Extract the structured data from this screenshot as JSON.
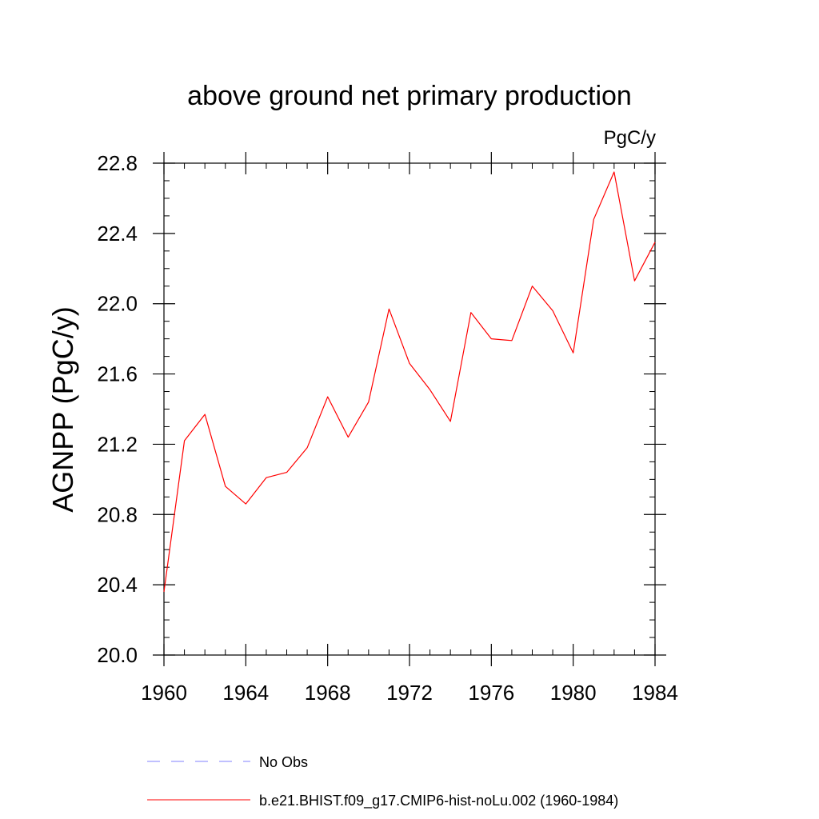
{
  "chart_data": {
    "type": "line",
    "title": "above ground net primary production",
    "units_label": "PgC/y",
    "xlabel": "",
    "ylabel": "AGNPP  (PgC/y)",
    "xlim": [
      1960,
      1984
    ],
    "ylim": [
      20.0,
      22.8
    ],
    "x_ticks": [
      1960,
      1964,
      1968,
      1972,
      1976,
      1980,
      1984
    ],
    "x_tick_labels": [
      "1960",
      "1964",
      "1968",
      "1972",
      "1976",
      "1980",
      "1984"
    ],
    "y_ticks": [
      20.0,
      20.4,
      20.8,
      21.2,
      21.6,
      22.0,
      22.4,
      22.8
    ],
    "y_tick_labels": [
      "20.0",
      "20.4",
      "20.8",
      "21.2",
      "21.6",
      "22.0",
      "22.4",
      "22.8"
    ],
    "grid": false,
    "legend_position": "bottom",
    "series": [
      {
        "name": "b.e21.BHIST.f09_g17.CMIP6-hist-noLu.002 (1960-1984)",
        "color": "#ff0000",
        "style": "solid",
        "x": [
          1960,
          1961,
          1962,
          1963,
          1964,
          1965,
          1966,
          1967,
          1968,
          1969,
          1970,
          1971,
          1972,
          1973,
          1974,
          1975,
          1976,
          1977,
          1978,
          1979,
          1980,
          1981,
          1982,
          1983,
          1984
        ],
        "y": [
          20.36,
          21.22,
          21.37,
          20.96,
          20.86,
          21.01,
          21.04,
          21.18,
          21.47,
          21.24,
          21.44,
          21.97,
          21.66,
          21.51,
          21.33,
          21.95,
          21.8,
          21.79,
          22.1,
          21.96,
          21.72,
          22.48,
          22.75,
          22.13,
          22.35
        ]
      }
    ],
    "legend": [
      {
        "label": "No Obs",
        "color": "#8080ff",
        "style": "dashed"
      },
      {
        "label": "b.e21.BHIST.f09_g17.CMIP6-hist-noLu.002 (1960-1984)",
        "color": "#ff0000",
        "style": "solid"
      }
    ]
  }
}
